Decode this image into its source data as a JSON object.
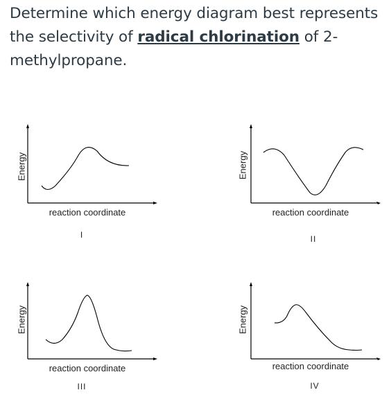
{
  "question": {
    "before": "Determine which energy diagram best represents the selectivity of ",
    "keyword": "radical chlorination",
    "after": " of 2-methylpropane."
  },
  "diagrams": [
    {
      "numeral": "I",
      "ylabel": "Energy",
      "xlabel": "reaction coordinate"
    },
    {
      "numeral": "II",
      "ylabel": "Energy",
      "xlabel": "reaction coordinate"
    },
    {
      "numeral": "III",
      "ylabel": "Energy",
      "xlabel": "reaction coordinate"
    },
    {
      "numeral": "IV",
      "ylabel": "Energy",
      "xlabel": "reaction coordinate"
    }
  ]
}
